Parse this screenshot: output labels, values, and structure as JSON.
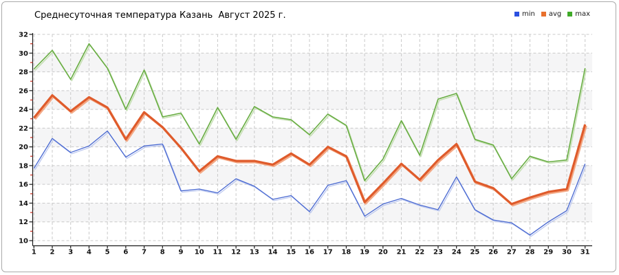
{
  "chart_data": {
    "type": "line",
    "title": "Среднесуточная температура Казань  Август 2025 г.",
    "xlabel": "",
    "ylabel": "",
    "x": [
      1,
      2,
      3,
      4,
      5,
      6,
      7,
      8,
      9,
      10,
      11,
      12,
      13,
      14,
      15,
      16,
      17,
      18,
      19,
      20,
      21,
      22,
      23,
      24,
      25,
      26,
      27,
      28,
      29,
      30,
      31
    ],
    "yticks": [
      10,
      12,
      14,
      16,
      18,
      20,
      22,
      24,
      26,
      28,
      30,
      32
    ],
    "ylim": [
      10,
      32
    ],
    "grid": "dashed",
    "legend_position": "top-right",
    "series": [
      {
        "name": "min",
        "color": "#4767d1",
        "swatch_color": "#2b50e0",
        "shadow": "#bcc8ef",
        "values": [
          17.7,
          20.9,
          19.4,
          20.1,
          21.7,
          18.9,
          20.1,
          20.3,
          15.3,
          15.5,
          15.1,
          16.6,
          15.8,
          14.4,
          14.8,
          13.1,
          15.9,
          16.4,
          12.6,
          13.9,
          14.5,
          13.8,
          13.3,
          16.8,
          13.3,
          12.2,
          11.9,
          10.6,
          12.0,
          13.2,
          18.2
        ]
      },
      {
        "name": "avg",
        "color": "#df5b2b",
        "swatch_color": "#e8702d",
        "shadow": "#f3a986",
        "values": [
          23.1,
          25.5,
          23.8,
          25.3,
          24.2,
          20.8,
          23.7,
          22.1,
          19.9,
          17.4,
          19.0,
          18.5,
          18.5,
          18.1,
          19.3,
          18.1,
          20.0,
          19.0,
          14.1,
          16.1,
          18.2,
          16.5,
          18.6,
          20.3,
          16.3,
          15.6,
          13.9,
          14.6,
          15.2,
          15.5,
          22.4
        ]
      },
      {
        "name": "max",
        "color": "#68ad42",
        "swatch_color": "#3faa28",
        "shadow": "#c6dfb4",
        "values": [
          28.3,
          30.3,
          27.2,
          31.0,
          28.4,
          24.0,
          28.2,
          23.2,
          23.6,
          20.3,
          24.2,
          20.8,
          24.3,
          23.2,
          22.9,
          21.3,
          23.5,
          22.3,
          16.4,
          18.7,
          22.8,
          19.1,
          25.1,
          25.7,
          20.8,
          20.2,
          16.6,
          19.0,
          18.4,
          18.6,
          28.4
        ]
      }
    ],
    "colors": {
      "band": "#f5f5f6",
      "grid": "#c9c9c9",
      "axis": "#1a1a1a",
      "tick_label": "#111111",
      "minor_tick": "#cc2b1d",
      "frame_border": "#a9a9a9",
      "background": "#ffffff"
    }
  }
}
